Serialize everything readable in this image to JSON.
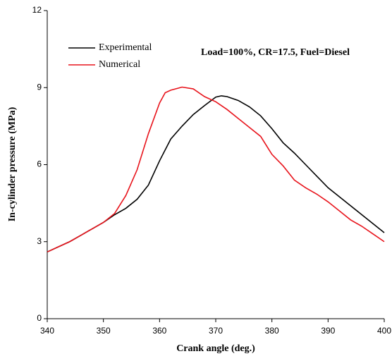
{
  "chart_data": {
    "type": "line",
    "xlabel": "Crank angle (deg.)",
    "ylabel": "In-cylinder pressure (MPa)",
    "annotation": "Load=100%, CR=17.5, Fuel=Diesel",
    "xlim": [
      340,
      400
    ],
    "xticks": [
      340,
      350,
      360,
      370,
      380,
      390,
      400
    ],
    "ylim": [
      0,
      12
    ],
    "yticks": [
      0,
      3,
      6,
      9,
      12
    ],
    "legend": "upper left",
    "series": [
      {
        "name": "Experimental",
        "color": "#000000",
        "x": [
          340,
          342,
          344,
          346,
          348,
          350,
          352,
          354,
          356,
          358,
          360,
          362,
          364,
          366,
          368,
          370,
          371,
          372,
          374,
          376,
          378,
          380,
          382,
          384,
          386,
          388,
          390,
          392,
          394,
          396,
          398,
          400
        ],
        "values": [
          2.6,
          2.8,
          3.0,
          3.25,
          3.5,
          3.75,
          4.05,
          4.3,
          4.65,
          5.2,
          6.15,
          7.0,
          7.5,
          7.95,
          8.3,
          8.63,
          8.68,
          8.65,
          8.5,
          8.25,
          7.9,
          7.4,
          6.85,
          6.45,
          6.0,
          5.55,
          5.1,
          4.75,
          4.4,
          4.05,
          3.7,
          3.35
        ]
      },
      {
        "name": "Numerical",
        "color": "#e8141c",
        "x": [
          340,
          342,
          344,
          346,
          348,
          350,
          352,
          354,
          356,
          358,
          360,
          361,
          362,
          364,
          366,
          368,
          370,
          372,
          374,
          376,
          378,
          380,
          382,
          384,
          386,
          388,
          390,
          392,
          394,
          396,
          398,
          400
        ],
        "values": [
          2.6,
          2.8,
          3.0,
          3.25,
          3.5,
          3.75,
          4.1,
          4.8,
          5.8,
          7.2,
          8.4,
          8.8,
          8.9,
          9.02,
          8.95,
          8.65,
          8.45,
          8.15,
          7.8,
          7.45,
          7.1,
          6.4,
          5.95,
          5.4,
          5.1,
          4.85,
          4.55,
          4.2,
          3.85,
          3.6,
          3.3,
          3.0
        ]
      }
    ]
  }
}
